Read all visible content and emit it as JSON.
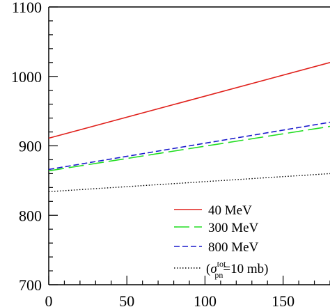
{
  "chart_data": {
    "type": "line",
    "title": "",
    "xlabel": "",
    "ylabel": "",
    "xlim": [
      0,
      180
    ],
    "ylim": [
      700,
      1100
    ],
    "x_ticks": [
      0,
      50,
      100,
      150
    ],
    "y_ticks": [
      700,
      800,
      900,
      1000,
      1100
    ],
    "grid": false,
    "legend_position": "bottom-right",
    "series": [
      {
        "name": "40 MeV",
        "color": "#e0201b",
        "dash": "solid",
        "x": [
          0,
          180
        ],
        "y": [
          911,
          1020
        ]
      },
      {
        "name": "300 MeV",
        "color": "#22dd22",
        "dash": "long-dash",
        "x": [
          0,
          180
        ],
        "y": [
          864,
          928
        ]
      },
      {
        "name": "800 MeV",
        "color": "#1a1acc",
        "dash": "short-dash",
        "x": [
          0,
          180
        ],
        "y": [
          866,
          934
        ]
      },
      {
        "name": "",
        "color": "#000000",
        "dash": "dotted",
        "x": [
          0,
          180
        ],
        "y": [
          834,
          860
        ]
      }
    ],
    "legend_extra": {
      "open_paren": "(",
      "sigma": "σ",
      "superscript": "tot",
      "subscript": "pn",
      "equals_value": "=10 mb)"
    }
  }
}
